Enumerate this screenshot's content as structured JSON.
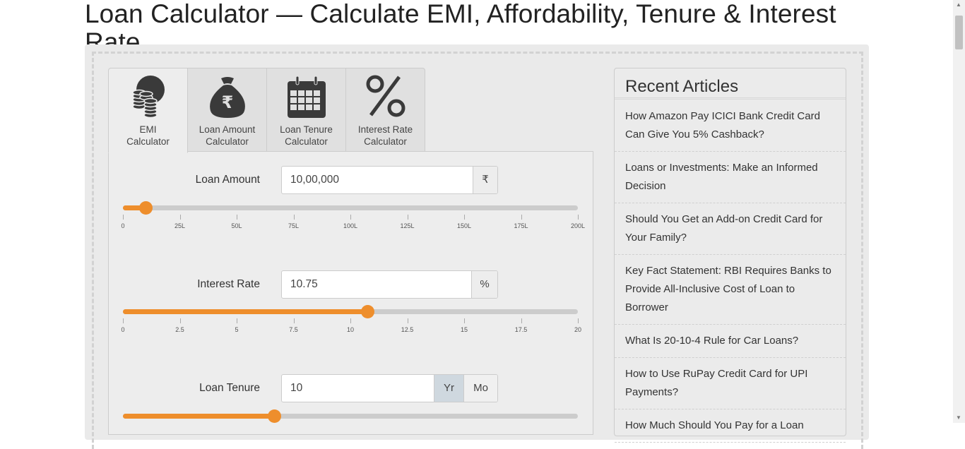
{
  "page": {
    "title": "Loan Calculator — Calculate EMI, Affordability, Tenure & Interest Rate"
  },
  "tabs": [
    {
      "label": "EMI Calculator",
      "line1": "EMI",
      "line2": "Calculator",
      "icon": "coins-icon",
      "active": true
    },
    {
      "label": "Loan Amount Calculator",
      "line1": "Loan Amount",
      "line2": "Calculator",
      "icon": "money-bag-icon",
      "active": false
    },
    {
      "label": "Loan Tenure Calculator",
      "line1": "Loan Tenure",
      "line2": "Calculator",
      "icon": "calendar-icon",
      "active": false
    },
    {
      "label": "Interest Rate Calculator",
      "line1": "Interest Rate",
      "line2": "Calculator",
      "icon": "percent-icon",
      "active": false
    }
  ],
  "fields": {
    "loan_amount": {
      "label": "Loan Amount",
      "value": "10,00,000",
      "unit": "₹",
      "slider_fraction": 0.05,
      "ticks": [
        "0",
        "25L",
        "50L",
        "75L",
        "100L",
        "125L",
        "150L",
        "175L",
        "200L"
      ]
    },
    "interest_rate": {
      "label": "Interest Rate",
      "value": "10.75",
      "unit": "%",
      "slider_fraction": 0.5375,
      "ticks": [
        "0",
        "2.5",
        "5",
        "7.5",
        "10",
        "12.5",
        "15",
        "17.5",
        "20"
      ]
    },
    "loan_tenure": {
      "label": "Loan Tenure",
      "value": "10",
      "unit_year": "Yr",
      "unit_month": "Mo",
      "selected_unit": "Yr",
      "slider_fraction": 0.333
    }
  },
  "sidebar": {
    "title": "Recent Articles",
    "articles": [
      "How Amazon Pay ICICI Bank Credit Card Can Give You 5% Cashback?",
      "Loans or Investments: Make an Informed Decision",
      "Should You Get an Add-on Credit Card for Your Family?",
      "Key Fact Statement: RBI Requires Banks to Provide All-Inclusive Cost of Loan to Borrower",
      "What Is 20-10-4 Rule for Car Loans?",
      "How to Use RuPay Credit Card for UPI Payments?",
      "How Much Should You Pay for a Loan"
    ]
  },
  "colors": {
    "accent": "#ee8e2c",
    "track": "#cccccc",
    "panel": "#ededed"
  }
}
